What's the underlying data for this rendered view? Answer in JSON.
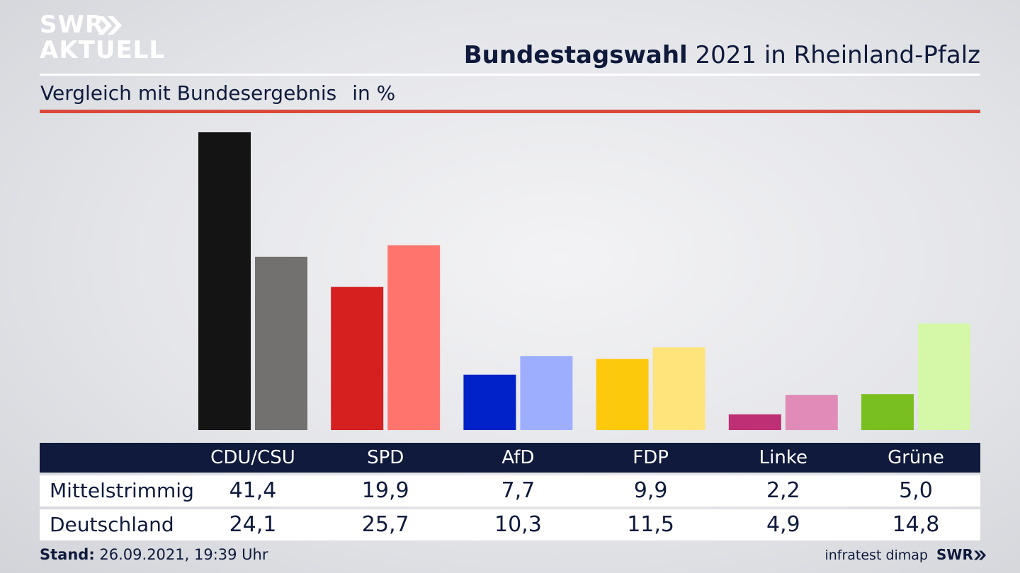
{
  "header": {
    "logo_line1": "SWR",
    "logo_line2": "AKTUELL",
    "title_bold": "Bundestagswahl",
    "title_rest": " 2021 in Rheinland-Pfalz",
    "subtitle": "Vergleich mit Bundesergebnis",
    "unit": "in %"
  },
  "chart_data": {
    "type": "bar",
    "title": "Bundestagswahl 2021 in Rheinland-Pfalz",
    "subtitle": "Vergleich mit Bundesergebnis",
    "unit": "in %",
    "categories": [
      "CDU/CSU",
      "SPD",
      "AfD",
      "FDP",
      "Linke",
      "Grüne"
    ],
    "series": [
      {
        "name": "Mittelstrimmig",
        "values": [
          41.4,
          19.9,
          7.7,
          9.9,
          2.2,
          5.0
        ],
        "labels": [
          "41,4",
          "19,9",
          "7,7",
          "9,9",
          "2,2",
          "5,0"
        ],
        "colors": [
          "#141414",
          "#d61f1f",
          "#0022c8",
          "#fdc90d",
          "#be2f76",
          "#79bf1f"
        ]
      },
      {
        "name": "Deutschland",
        "values": [
          24.1,
          25.7,
          10.3,
          11.5,
          4.9,
          14.8
        ],
        "labels": [
          "24,1",
          "25,7",
          "10,3",
          "11,5",
          "4,9",
          "14,8"
        ],
        "colors": [
          "#727170",
          "#ff756d",
          "#9eaeff",
          "#fee47b",
          "#e18cb8",
          "#d4f7a8"
        ]
      }
    ],
    "ylim": [
      0,
      41.4
    ],
    "grid": false,
    "legend": "table-below"
  },
  "footer": {
    "stand_label": "Stand:",
    "stand_value": " 26.09.2021, 19:39 Uhr",
    "source": "infratest dimap",
    "brand": "SWR"
  }
}
